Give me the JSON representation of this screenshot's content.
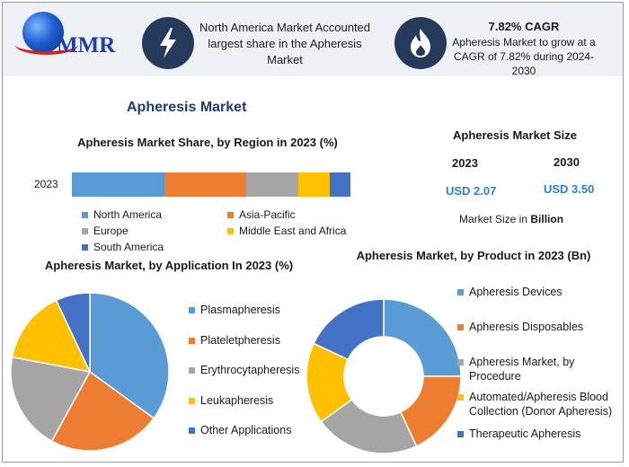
{
  "header": {
    "logo_text": "MMR",
    "na_text": "North America Market Accounted largest share in the Apheresis Market",
    "cagr_title": "7.82% CAGR",
    "cagr_text": "Apheresis Market to grow at a CAGR of 7.82% during 2024-2030",
    "icons": [
      "lightning-icon",
      "flame-icon"
    ]
  },
  "main_title": "Apheresis Market",
  "market_size": {
    "title": "Apheresis Market Size",
    "year1": "2023",
    "year2": "2030",
    "value1": "USD 2.07",
    "value2": "USD 3.50",
    "note_prefix": "Market Size in ",
    "note_bold": "Billion"
  },
  "chart_data": [
    {
      "type": "bar",
      "orientation": "horizontal-stacked",
      "title": "Apheresis Market Share, by Region in 2023 (%)",
      "categories": [
        "2023"
      ],
      "series": [
        {
          "name": "North America",
          "values": [
            32
          ],
          "color": "#5b9bd5"
        },
        {
          "name": "Asia-Pacific",
          "values": [
            28
          ],
          "color": "#ed7d31"
        },
        {
          "name": "Europe",
          "values": [
            18
          ],
          "color": "#a5a5a5"
        },
        {
          "name": "Middle East and Africa",
          "values": [
            11
          ],
          "color": "#ffc000"
        },
        {
          "name": "South America",
          "values": [
            7
          ],
          "color": "#4472c4"
        }
      ],
      "legend": "bottom"
    },
    {
      "type": "pie",
      "title": "Apheresis Market, by Application In 2023 (%)",
      "labels": [
        "Plasmapheresis",
        "Plateletpheresis",
        "Erythrocytapheresis",
        "Leukapheresis",
        "Other Applications"
      ],
      "values": [
        35,
        23,
        20,
        15,
        7
      ],
      "colors": [
        "#5b9bd5",
        "#ed7d31",
        "#a5a5a5",
        "#ffc000",
        "#4472c4"
      ],
      "legend": "right"
    },
    {
      "type": "pie",
      "variant": "donut",
      "title": "Apheresis Market, by Product in 2023 (Bn)",
      "labels": [
        "Apheresis Devices",
        "Apheresis Disposables",
        "Apheresis Market, by Procedure",
        "Automated/Apheresis Blood Collection (Donor Apheresis)",
        "Therapeutic Apheresis"
      ],
      "values": [
        25,
        18,
        22,
        17,
        18
      ],
      "colors": [
        "#5b9bd5",
        "#ed7d31",
        "#a5a5a5",
        "#ffc000",
        "#4472c4"
      ],
      "legend": "right"
    }
  ]
}
